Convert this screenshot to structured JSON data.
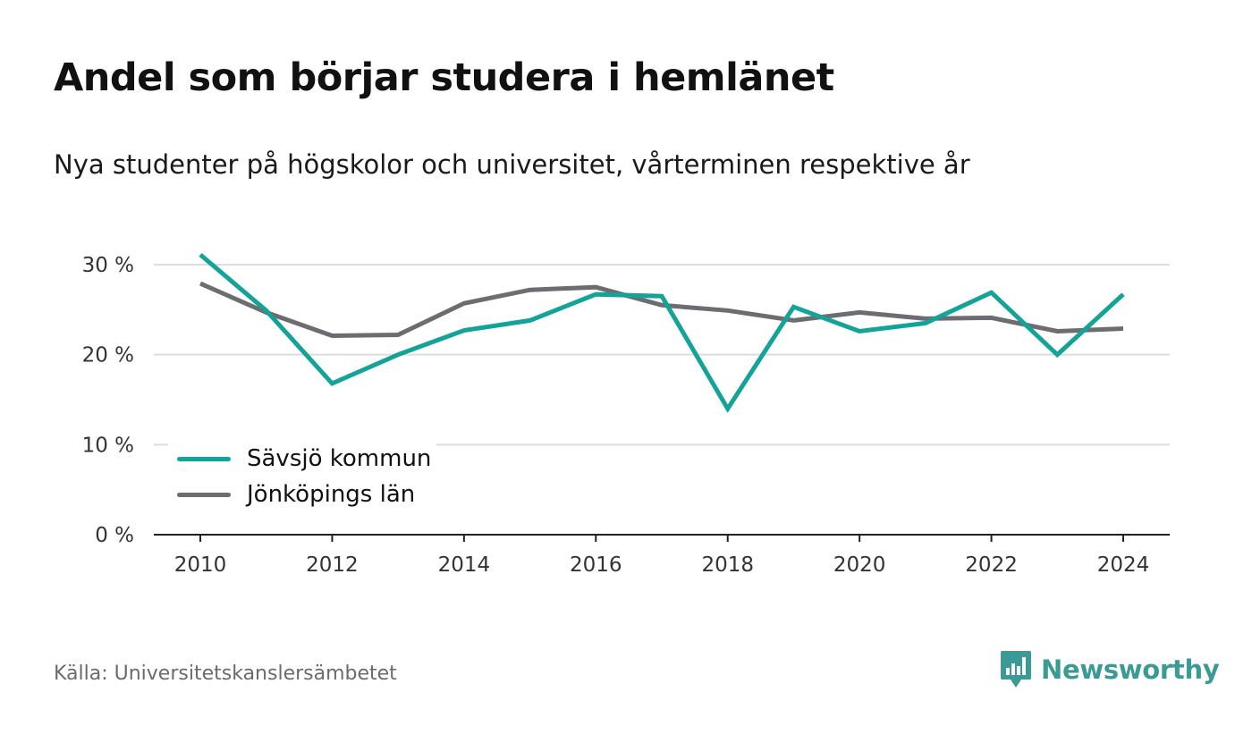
{
  "title": "Andel som börjar studera i hemlänet",
  "subtitle": "Nya studenter på högskolor och universitet, vårterminen respektive år",
  "source": "Källa: Universitetskanslersämbetet",
  "brand": {
    "name": "Newsworthy",
    "icon": "newsworthy-logo-icon",
    "color": "#3a9a95"
  },
  "colors": {
    "savsjo": "#13a398",
    "jonkoping": "#6d6c70",
    "grid": "#dddddd",
    "axis": "#222222"
  },
  "chart_data": {
    "type": "line",
    "x": [
      2010,
      2011,
      2012,
      2013,
      2014,
      2015,
      2016,
      2017,
      2018,
      2019,
      2020,
      2021,
      2022,
      2023,
      2024
    ],
    "x_ticks": [
      "2010",
      "2012",
      "2014",
      "2016",
      "2018",
      "2020",
      "2022",
      "2024"
    ],
    "y_ticks": [
      "30 %",
      "20 %",
      "10 %",
      "0 %"
    ],
    "y_tick_values": [
      30,
      20,
      10,
      0
    ],
    "ylim": [
      0,
      30
    ],
    "xlim": [
      2010,
      2024
    ],
    "grid": true,
    "legend_position": "bottom-left",
    "series": [
      {
        "name": "Sävsjö kommun",
        "color": "#13a398",
        "values": [
          31.1,
          24.9,
          16.8,
          20.0,
          22.7,
          23.8,
          26.7,
          26.5,
          14.0,
          25.3,
          22.6,
          23.5,
          26.9,
          20.0,
          26.7
        ]
      },
      {
        "name": "Jönköpings län",
        "color": "#6d6c70",
        "values": [
          27.9,
          24.7,
          22.1,
          22.2,
          25.7,
          27.2,
          27.5,
          25.5,
          24.9,
          23.8,
          24.7,
          24.0,
          24.1,
          22.6,
          22.9
        ]
      }
    ]
  }
}
